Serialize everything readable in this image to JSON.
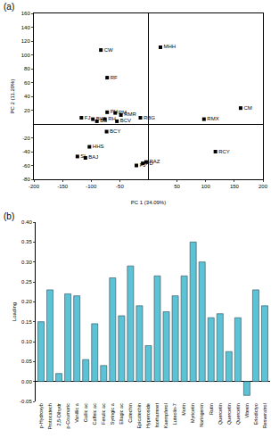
{
  "chart_data": [
    {
      "type": "scatter",
      "title": "(a)",
      "x_label": "PC 1 (34.09%)",
      "y_label": "PC 2 (11.20%)",
      "points": [
        {
          "x": -83,
          "y": 107,
          "label": "CW"
        },
        {
          "x": 21,
          "y": 111,
          "label": "MHH"
        },
        {
          "x": -72,
          "y": 67,
          "label": "RF"
        },
        {
          "x": -72,
          "y": 17,
          "label": "PH"
        },
        {
          "x": -117,
          "y": 9,
          "label": "FJ"
        },
        {
          "x": -97,
          "y": 7,
          "label": "BW"
        },
        {
          "x": -90,
          "y": 4,
          "label": "BS"
        },
        {
          "x": -76,
          "y": 7,
          "label": "RH"
        },
        {
          "x": -55,
          "y": 4,
          "label": "BCV"
        },
        {
          "x": -58,
          "y": 16,
          "label": "RM"
        },
        {
          "x": -48,
          "y": 13,
          "label": "RMR"
        },
        {
          "x": -73,
          "y": -11,
          "label": "BCY"
        },
        {
          "x": -14,
          "y": 9,
          "label": "RBG"
        },
        {
          "x": 161,
          "y": 23,
          "label": "CM"
        },
        {
          "x": 97,
          "y": 7,
          "label": "RMX"
        },
        {
          "x": 117,
          "y": -40,
          "label": "RCY"
        },
        {
          "x": -103,
          "y": -33,
          "label": "HHS"
        },
        {
          "x": -124,
          "y": -47,
          "label": "SI"
        },
        {
          "x": -110,
          "y": -49,
          "label": "BAJ"
        },
        {
          "x": -21,
          "y": -60,
          "label": "PJ"
        },
        {
          "x": -10,
          "y": -57,
          "label": "PD"
        },
        {
          "x": -4,
          "y": -55,
          "label": "RAZ"
        }
      ],
      "color": "#000000",
      "marker": "square",
      "xlim": [
        -200,
        200
      ],
      "xticks": [
        -200,
        -150,
        -100,
        -50,
        50,
        100,
        150,
        200
      ],
      "ylim": [
        -80,
        160
      ],
      "yticks": [
        -80,
        -60,
        -40,
        -20,
        20,
        40,
        60,
        80,
        100,
        120,
        140,
        160
      ],
      "grid": false
    },
    {
      "type": "bar",
      "title": "(b)",
      "y_label": "Loading",
      "categories": [
        "p-Hydroxyb",
        "Protocatech",
        "2,5-Dihydr",
        "p-Coumaric",
        "Vanillic a",
        "Gallic ac",
        "Caffeic ac",
        "Ferulic ac",
        "Syringic a",
        "Ellagic ac",
        "Catechin",
        "Epicatechin",
        "Hyperoside",
        "Isorhamnet",
        "Kaempferol",
        "Luteolin-7",
        "Morin",
        "Myricetin",
        "Naringenin",
        "Rutin",
        "Quercetin",
        "Quercetin",
        "Quercetin",
        "Vitexin",
        "Eriodictyo",
        "Resveratrol"
      ],
      "values": [
        0.15,
        0.23,
        0.02,
        0.22,
        0.215,
        0.055,
        0.145,
        0.04,
        0.26,
        0.165,
        0.29,
        0.19,
        0.09,
        0.265,
        0.175,
        0.215,
        0.265,
        0.35,
        0.3,
        0.16,
        0.17,
        0.075,
        0.16,
        -0.035,
        0.23,
        0.19
      ],
      "color": "#5cc3d6",
      "ylim": [
        -0.05,
        0.4
      ],
      "yticks": [
        {
          "value": -0.05,
          "label": "-0.05"
        },
        {
          "value": 0,
          "label": "0.00"
        },
        {
          "value": 0.05,
          "label": "0.05"
        },
        {
          "value": 0.1,
          "label": "0.10"
        },
        {
          "value": 0.15,
          "label": "0.15"
        },
        {
          "value": 0.2,
          "label": "0.20"
        },
        {
          "value": 0.25,
          "label": "0.25"
        },
        {
          "value": 0.3,
          "label": "0.30"
        },
        {
          "value": 0.35,
          "label": "0.35"
        },
        {
          "value": 0.4,
          "label": "0.40"
        }
      ],
      "grid": false
    }
  ]
}
